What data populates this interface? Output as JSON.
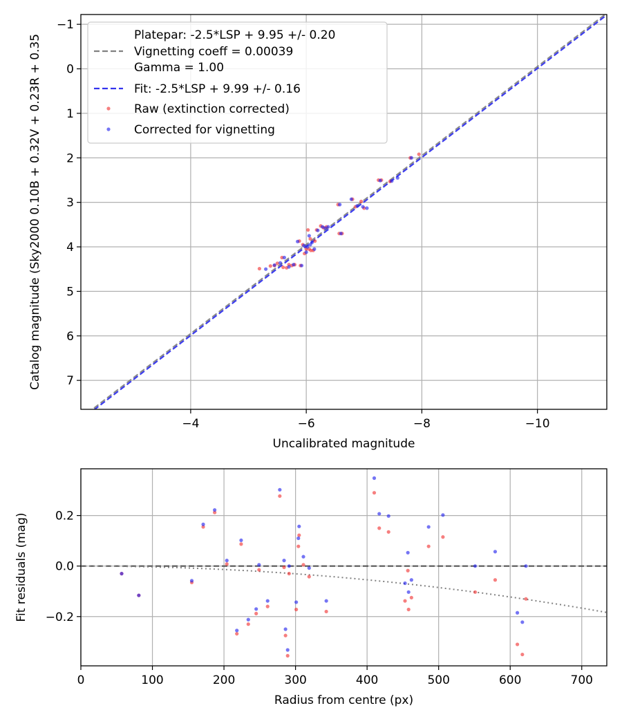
{
  "chart_data": [
    {
      "type": "scatter",
      "title": "",
      "xlabel": "Uncalibrated magnitude",
      "ylabel": "Catalog magnitude (Sky2000 0.10B + 0.32V + 0.23R + 0.35",
      "xlim": [
        -2.1,
        -11.2
      ],
      "ylim": [
        7.65,
        -1.22
      ],
      "x_inverted": true,
      "y_inverted": true,
      "xticks": [
        -4,
        -6,
        -8,
        -10
      ],
      "xtick_labels": [
        "−4",
        "−6",
        "−8",
        "−10"
      ],
      "yticks": [
        -1,
        0,
        1,
        2,
        3,
        4,
        5,
        6,
        7
      ],
      "ytick_labels": [
        "−1",
        "0",
        "1",
        "2",
        "3",
        "4",
        "5",
        "6",
        "7"
      ],
      "grid": true,
      "legend": {
        "placement": "top-left",
        "entries": [
          {
            "label": "Platepar: -2.5*LSP + 9.95 +/- 0.20",
            "marker": "none"
          },
          {
            "label": "Vignetting coeff = 0.00039",
            "marker": "dashed-gray"
          },
          {
            "label": "Gamma = 1.00",
            "marker": "none"
          },
          {
            "label": "Fit: -2.5*LSP + 9.99 +/- 0.16",
            "marker": "dashed-blue"
          },
          {
            "label": "Raw (extinction corrected)",
            "marker": "dot-red"
          },
          {
            "label": "Corrected for vignetting",
            "marker": "dot-blue"
          }
        ]
      },
      "lines": [
        {
          "name": "Platepar",
          "slope": 1,
          "intercept": 9.95,
          "color": "#808080",
          "style": "dashed"
        },
        {
          "name": "Fit",
          "slope": 1,
          "intercept": 9.99,
          "color": "#3333ee",
          "style": "dashed"
        }
      ],
      "series": [
        {
          "name": "Raw (extinction corrected)",
          "color": "#f03030",
          "points": [
            [
              -5.19,
              4.49
            ],
            [
              -5.38,
              4.43
            ],
            [
              -5.45,
              4.42
            ],
            [
              -5.5,
              4.37
            ],
            [
              -5.58,
              4.24
            ],
            [
              -5.6,
              4.46
            ],
            [
              -5.66,
              4.47
            ],
            [
              -5.7,
              4.4
            ],
            [
              -5.75,
              4.42
            ],
            [
              -5.8,
              4.4
            ],
            [
              -5.88,
              3.87
            ],
            [
              -5.9,
              4.42
            ],
            [
              -5.94,
              3.95
            ],
            [
              -5.97,
              4.15
            ],
            [
              -6.0,
              4.05
            ],
            [
              -6.03,
              3.62
            ],
            [
              -6.05,
              4.05
            ],
            [
              -6.07,
              3.82
            ],
            [
              -6.08,
              4.08
            ],
            [
              -6.12,
              4.08
            ],
            [
              -6.15,
              3.87
            ],
            [
              -6.18,
              3.62
            ],
            [
              -6.25,
              3.53
            ],
            [
              -6.3,
              3.57
            ],
            [
              -6.35,
              3.55
            ],
            [
              -6.55,
              3.05
            ],
            [
              -6.57,
              3.7
            ],
            [
              -6.62,
              3.7
            ],
            [
              -6.8,
              2.93
            ],
            [
              -6.85,
              3.1
            ],
            [
              -6.95,
              2.98
            ],
            [
              -7.0,
              3.13
            ],
            [
              -7.25,
              2.5
            ],
            [
              -7.3,
              2.5
            ],
            [
              -7.45,
              2.53
            ],
            [
              -7.8,
              2.0
            ],
            [
              -7.95,
              1.92
            ]
          ]
        },
        {
          "name": "Corrected for vignetting",
          "color": "#2020ee",
          "points": [
            [
              -5.3,
              4.5
            ],
            [
              -5.45,
              4.41
            ],
            [
              -5.55,
              4.36
            ],
            [
              -5.62,
              4.24
            ],
            [
              -5.7,
              4.45
            ],
            [
              -5.78,
              4.4
            ],
            [
              -5.85,
              3.88
            ],
            [
              -5.92,
              4.42
            ],
            [
              -5.96,
              3.97
            ],
            [
              -6.0,
              4.12
            ],
            [
              -6.02,
              4.0
            ],
            [
              -6.05,
              3.75
            ],
            [
              -6.07,
              3.95
            ],
            [
              -6.1,
              3.9
            ],
            [
              -6.14,
              4.05
            ],
            [
              -6.2,
              3.63
            ],
            [
              -6.28,
              3.55
            ],
            [
              -6.33,
              3.58
            ],
            [
              -6.38,
              3.55
            ],
            [
              -6.58,
              3.05
            ],
            [
              -6.6,
              3.7
            ],
            [
              -6.78,
              2.93
            ],
            [
              -6.88,
              3.08
            ],
            [
              -6.98,
              3.1
            ],
            [
              -7.05,
              3.13
            ],
            [
              -7.28,
              2.51
            ],
            [
              -7.48,
              2.52
            ],
            [
              -7.58,
              2.45
            ],
            [
              -7.82,
              2.0
            ]
          ]
        }
      ]
    },
    {
      "type": "scatter",
      "title": "",
      "xlabel": "Radius from centre (px)",
      "ylabel": "Fit residuals (mag)",
      "xlim": [
        0,
        735
      ],
      "ylim": [
        -0.395,
        0.385
      ],
      "xticks": [
        0,
        100,
        200,
        300,
        400,
        500,
        600,
        700
      ],
      "xtick_labels": [
        "0",
        "100",
        "200",
        "300",
        "400",
        "500",
        "600",
        "700"
      ],
      "yticks": [
        -0.2,
        0.0,
        0.2
      ],
      "ytick_labels": [
        "−0.2",
        "0.0",
        "0.2"
      ],
      "grid": true,
      "lines": [
        {
          "name": "zero",
          "type": "horizontal",
          "y": 0,
          "color": "#555555",
          "style": "dashed"
        },
        {
          "name": "vignetting",
          "type": "curve",
          "coeff": 0.00039,
          "color": "#808080",
          "style": "dotted"
        }
      ],
      "series": [
        {
          "name": "Raw (extinction corrected)",
          "color": "#f03030",
          "points": [
            [
              57,
              -0.03
            ],
            [
              81,
              -0.116
            ],
            [
              155,
              -0.065
            ],
            [
              171,
              0.155
            ],
            [
              187,
              0.212
            ],
            [
              204,
              0.008
            ],
            [
              218,
              -0.268
            ],
            [
              224,
              0.087
            ],
            [
              234,
              -0.23
            ],
            [
              245,
              -0.188
            ],
            [
              249,
              -0.015
            ],
            [
              261,
              -0.16
            ],
            [
              278,
              0.277
            ],
            [
              284,
              -0.005
            ],
            [
              286,
              -0.275
            ],
            [
              289,
              -0.355
            ],
            [
              291,
              -0.03
            ],
            [
              301,
              -0.172
            ],
            [
              304,
              0.078
            ],
            [
              305,
              0.122
            ],
            [
              311,
              0.005
            ],
            [
              319,
              -0.042
            ],
            [
              343,
              -0.18
            ],
            [
              410,
              0.29
            ],
            [
              417,
              0.15
            ],
            [
              430,
              0.135
            ],
            [
              453,
              -0.138
            ],
            [
              457,
              -0.018
            ],
            [
              458,
              -0.172
            ],
            [
              462,
              -0.125
            ],
            [
              486,
              0.078
            ],
            [
              506,
              0.115
            ],
            [
              551,
              -0.103
            ],
            [
              579,
              -0.055
            ],
            [
              610,
              -0.31
            ],
            [
              617,
              -0.35
            ],
            [
              622,
              -0.13
            ]
          ]
        },
        {
          "name": "Corrected for vignetting",
          "color": "#2020ee",
          "points": [
            [
              57,
              -0.03
            ],
            [
              81,
              -0.116
            ],
            [
              155,
              -0.058
            ],
            [
              171,
              0.165
            ],
            [
              187,
              0.222
            ],
            [
              204,
              0.022
            ],
            [
              218,
              -0.255
            ],
            [
              224,
              0.102
            ],
            [
              234,
              -0.212
            ],
            [
              245,
              -0.17
            ],
            [
              249,
              0.005
            ],
            [
              261,
              -0.138
            ],
            [
              278,
              0.302
            ],
            [
              284,
              0.022
            ],
            [
              286,
              -0.25
            ],
            [
              289,
              -0.332
            ],
            [
              291,
              0.0
            ],
            [
              301,
              -0.143
            ],
            [
              304,
              0.11
            ],
            [
              305,
              0.157
            ],
            [
              311,
              0.037
            ],
            [
              319,
              -0.008
            ],
            [
              343,
              -0.138
            ],
            [
              410,
              0.348
            ],
            [
              417,
              0.207
            ],
            [
              430,
              0.198
            ],
            [
              453,
              -0.068
            ],
            [
              457,
              0.053
            ],
            [
              458,
              -0.103
            ],
            [
              462,
              -0.055
            ],
            [
              486,
              0.155
            ],
            [
              506,
              0.202
            ],
            [
              551,
              0.0
            ],
            [
              579,
              0.057
            ],
            [
              610,
              -0.185
            ],
            [
              617,
              -0.222
            ],
            [
              622,
              0.0
            ]
          ]
        }
      ]
    }
  ]
}
